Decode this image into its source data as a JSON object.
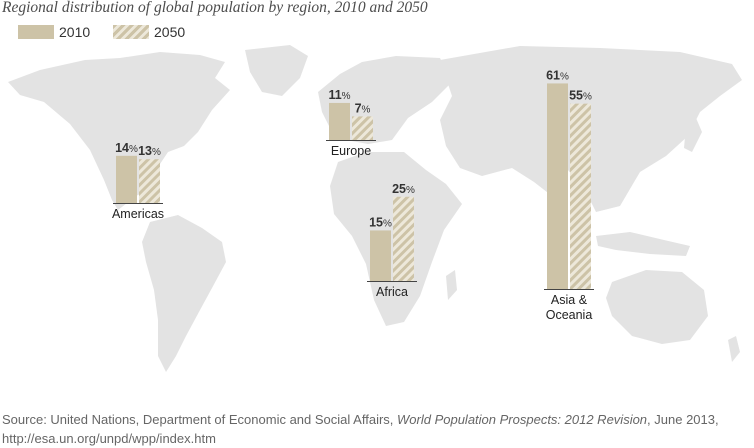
{
  "chart_data": {
    "type": "bar",
    "title": "Regional distribution of global population by region, 2010 and 2050",
    "series": [
      {
        "name": "2010",
        "values": [
          14,
          11,
          15,
          61
        ]
      },
      {
        "name": "2050",
        "values": [
          13,
          7,
          25,
          55
        ]
      }
    ],
    "categories": [
      "Americas",
      "Europe",
      "Africa",
      "Asia & Oceania"
    ],
    "unit": "%",
    "colors": {
      "bar": "#cdc3a7",
      "hatch_light": "#ede8da",
      "map": "#e3e3e3"
    }
  },
  "source": {
    "prefix": "Source: United Nations, Department of Economic and Social Affairs, ",
    "work": "World Population Prospects: 2012 Revision",
    "suffix": ", June 2013,",
    "url": "http://esa.un.org/unpd/wpp/index.htm"
  }
}
